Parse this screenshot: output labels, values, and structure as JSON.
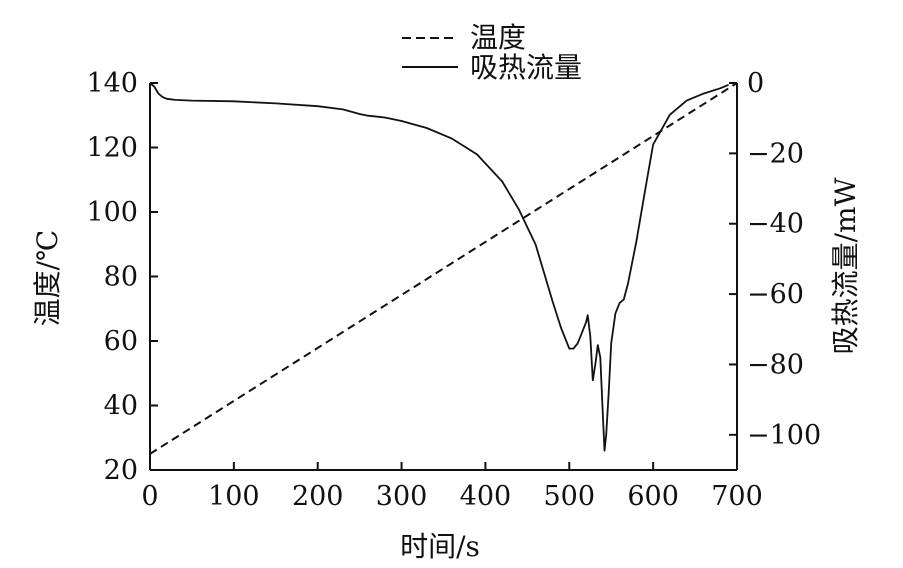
{
  "chart_data": {
    "type": "line",
    "xlabel": "时间/s",
    "ylabel_left": "温度/℃",
    "ylabel_right": "吸热流量/mW",
    "xlim": [
      0,
      700
    ],
    "ylim_left": [
      20,
      140
    ],
    "ylim_right": [
      -110,
      0
    ],
    "x_ticks": [
      0,
      100,
      200,
      300,
      400,
      500,
      600,
      700
    ],
    "x_tick_labels": [
      "0",
      "100",
      "200",
      "300",
      "400",
      "500",
      "600",
      "700"
    ],
    "y_left_ticks": [
      20,
      40,
      60,
      80,
      100,
      120,
      140
    ],
    "y_left_tick_labels": [
      "20",
      "40",
      "60",
      "80",
      "100",
      "120",
      "140"
    ],
    "y_right_ticks": [
      0,
      -20,
      -40,
      -60,
      -80,
      -100
    ],
    "y_right_tick_labels": [
      "0",
      "−20",
      "−40",
      "−60",
      "−80",
      "−100"
    ],
    "grid": false,
    "legend_position": "top-center",
    "legend": [
      {
        "label": "温度",
        "style": "dashed"
      },
      {
        "label": "吸热流量",
        "style": "solid"
      }
    ],
    "series": [
      {
        "name": "温度",
        "axis": "left",
        "style": "dashed",
        "x": [
          0,
          700
        ],
        "y": [
          25,
          140
        ]
      },
      {
        "name": "吸热流量",
        "axis": "right",
        "style": "solid",
        "x": [
          0,
          5,
          10,
          15,
          20,
          30,
          50,
          100,
          150,
          200,
          230,
          250,
          260,
          280,
          300,
          330,
          360,
          390,
          420,
          440,
          460,
          480,
          490,
          500,
          505,
          510,
          515,
          520,
          522,
          525,
          528,
          531,
          534,
          537,
          540,
          542,
          544,
          547,
          550,
          555,
          560,
          565,
          570,
          580,
          590,
          600,
          620,
          640,
          660,
          680,
          690
        ],
        "y": [
          0,
          -1,
          -3,
          -4,
          -4.5,
          -4.8,
          -5,
          -5.2,
          -5.8,
          -6.6,
          -7.5,
          -8.8,
          -9.3,
          -9.8,
          -10.8,
          -12.8,
          -15.8,
          -20.3,
          -28,
          -36,
          -46,
          -62,
          -69.5,
          -75.5,
          -75.5,
          -74,
          -71,
          -68,
          -66,
          -72,
          -84.5,
          -80,
          -74.5,
          -78,
          -94,
          -104.5,
          -100,
          -88,
          -74,
          -65.5,
          -62.5,
          -61.5,
          -57,
          -45,
          -31,
          -17.5,
          -9,
          -5,
          -3,
          -1.5,
          -0.5
        ]
      }
    ]
  }
}
